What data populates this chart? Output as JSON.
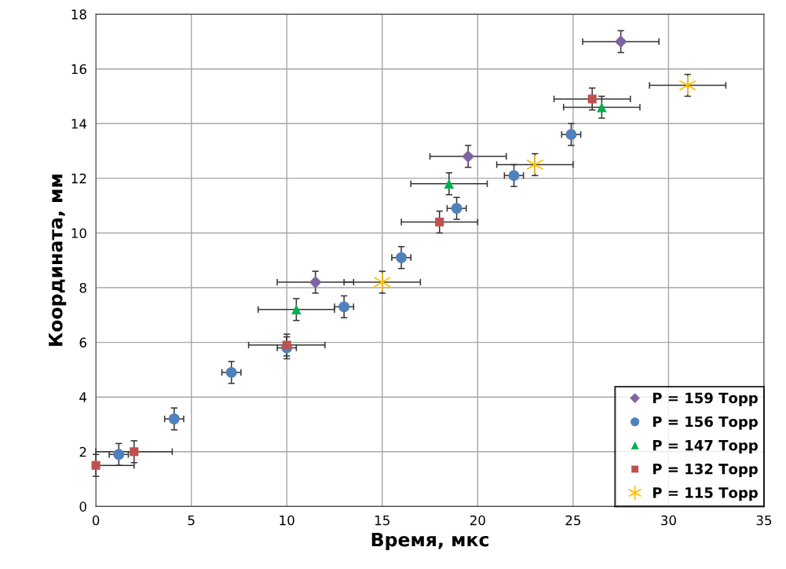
{
  "chart_data": {
    "type": "scatter",
    "xlabel": "Время, мкс",
    "ylabel": "Координата, мм",
    "xlim": [
      0,
      35
    ],
    "xticks": [
      0,
      5,
      10,
      15,
      20,
      25,
      30,
      35
    ],
    "ylim": [
      0,
      18
    ],
    "yticks": [
      0,
      2,
      4,
      6,
      8,
      10,
      12,
      14,
      16,
      18
    ],
    "grid": true,
    "legend": "bottom right",
    "series": [
      {
        "name": "P = 159 Торр",
        "color": "#8064a2",
        "marker": "diamond",
        "x": [
          11.5,
          19.5,
          27.5
        ],
        "values": [
          8.2,
          12.8,
          17.0
        ],
        "errors": [
          0.4,
          0.4,
          0.4
        ],
        "xerrors": [
          2,
          2,
          2
        ]
      },
      {
        "name": "P = 156 Торр",
        "color": "#4f81bd",
        "marker": "circle",
        "x": [
          1.2,
          4.1,
          7.1,
          10,
          13,
          16,
          18.9,
          21.9,
          24.9
        ],
        "values": [
          1.9,
          3.2,
          4.9,
          5.8,
          7.3,
          9.1,
          10.9,
          12.1,
          13.6
        ],
        "errors": [
          0.4,
          0.4,
          0.4,
          0.4,
          0.4,
          0.4,
          0.4,
          0.4,
          0.4
        ],
        "xerrors": [
          0.5,
          0.5,
          0.5,
          0.5,
          0.5,
          0.5,
          0.5,
          0.5,
          0.5
        ]
      },
      {
        "name": "P = 147 Торр",
        "color": "#00b050",
        "marker": "triangle",
        "x": [
          10.5,
          18.5,
          26.5
        ],
        "values": [
          7.2,
          11.8,
          14.6
        ],
        "errors": [
          0.4,
          0.4,
          0.4
        ],
        "xerrors": [
          2,
          2,
          2
        ]
      },
      {
        "name": "P = 132 Торр",
        "color": "#c0504d",
        "marker": "square",
        "x": [
          0,
          2,
          10,
          18,
          26
        ],
        "values": [
          1.5,
          2.0,
          5.9,
          10.4,
          14.9
        ],
        "errors": [
          0.4,
          0.4,
          0.4,
          0.4,
          0.4
        ],
        "xerrors": [
          [
            0,
            2
          ],
          2,
          2,
          2,
          2
        ]
      },
      {
        "name": "P = 115 Торр",
        "color": "#ffc000",
        "marker": "cross",
        "x": [
          15,
          23,
          31
        ],
        "values": [
          8.2,
          12.5,
          15.4
        ],
        "errors": [
          0.4,
          0.4,
          0.4
        ],
        "xerrors": [
          2,
          2,
          2
        ]
      }
    ]
  }
}
